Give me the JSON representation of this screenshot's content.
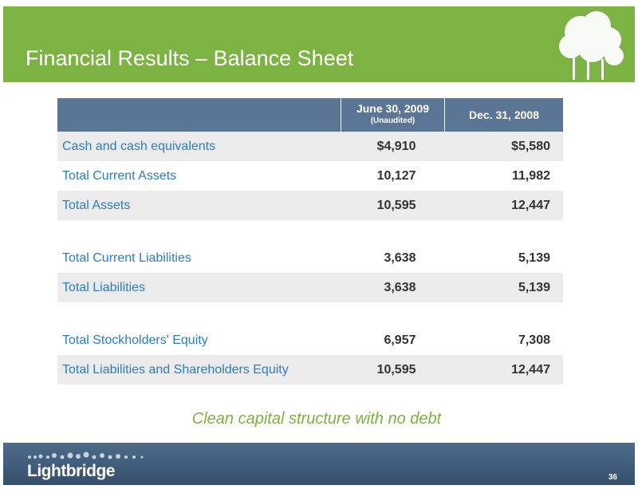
{
  "header": {
    "title": "Financial Results – Balance Sheet"
  },
  "table": {
    "columns": [
      {
        "label": "June 30, 2009",
        "note": "(Unaudited)"
      },
      {
        "label": "Dec. 31, 2008"
      }
    ],
    "groups": [
      [
        [
          "Cash and cash equivalents",
          "$4,910",
          "$5,580"
        ],
        [
          "Total Current Assets",
          "10,127",
          "11,982"
        ],
        [
          "Total Assets",
          "10,595",
          "12,447"
        ]
      ],
      [
        [
          "Total Current Liabilities",
          "3,638",
          "5,139"
        ],
        [
          "Total Liabilities",
          "3,638",
          "5,139"
        ]
      ],
      [
        [
          "Total Stockholders' Equity",
          "6,957",
          "7,308"
        ],
        [
          "Total Liabilities and Shareholders Equity",
          "10,595",
          "12,447"
        ]
      ]
    ]
  },
  "tagline": "Clean capital structure with no debt",
  "footer": {
    "logo": "Lightbridge",
    "page": "36"
  }
}
